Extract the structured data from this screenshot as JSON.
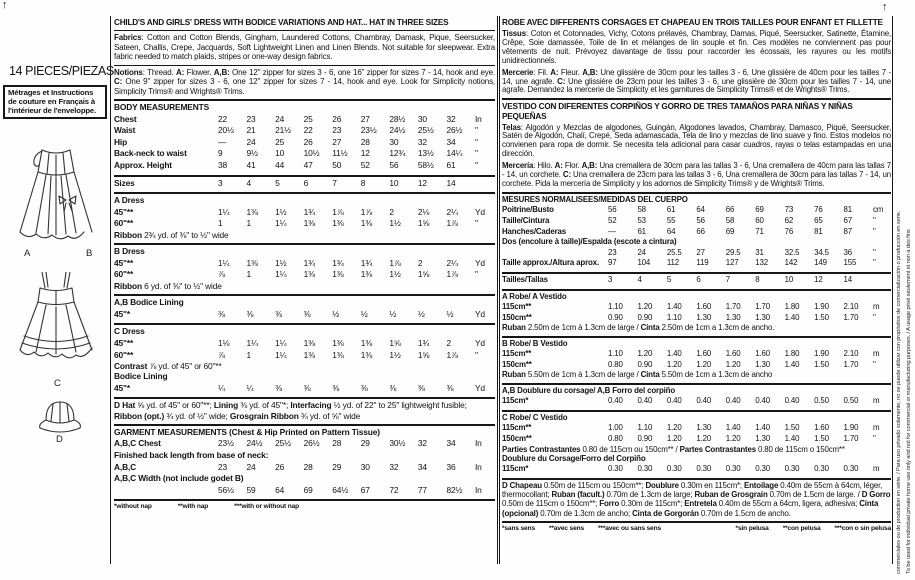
{
  "decor": {
    "arrow_glyph": "↑"
  },
  "sidebar": {
    "pieces_label": "14 PIECES/PIEZAS",
    "notice": "Métrages et Instructions de couture en Français à l'intérieur de l'enveloppe.",
    "view_labels": {
      "a": "A",
      "b": "B",
      "c": "C",
      "d": "D"
    }
  },
  "english": {
    "title": "CHILD'S AND GIRLS' DRESS WITH BODICE VARIATIONS AND HAT... HAT IN THREE SIZES",
    "fabrics": [
      {
        "b": "Fabrics"
      },
      {
        "t": ": Cotton and Cotton Blends, Gingham, Laundered Cottons, Chambray, Damask, Pique, Seersucker, Sateen, Challis, Crepe, Jacquards, Soft Lightweight Linen and Linen Blends. Not suitable for sleepwear. Extra fabric needed to match plaids, stripes or one-way design fabrics."
      }
    ],
    "notions": [
      {
        "b": "Notions"
      },
      {
        "t": ": Thread. "
      },
      {
        "b": "A:"
      },
      {
        "t": " Flower. "
      },
      {
        "b": "A,B:"
      },
      {
        "t": " One 12\" zipper for sizes 3 - 6, one 16\" zipper for sizes 7 - 14, hook and eye. "
      },
      {
        "b": "C:"
      },
      {
        "t": " One 9\" zipper for sizes 3 - 6, one 12\" zipper for sizes 7 - 14, hook and eye. Look for Simplicity notions, Simplicity Trims® and Wrights® Trims."
      }
    ],
    "rows": [
      {
        "label": "BODY MEASUREMENTS",
        "name": "body-measurements-header"
      },
      {
        "label": "Chest",
        "values": [
          "22",
          "23",
          "24",
          "25",
          "26",
          "27",
          "28½",
          "30",
          "32"
        ],
        "unit": "In",
        "name": "row-chest"
      },
      {
        "label": "Waist",
        "values": [
          "20½",
          "21",
          "21½",
          "22",
          "23",
          "23½",
          "24½",
          "25½",
          "26½"
        ],
        "unit": "\"",
        "name": "row-waist"
      },
      {
        "label": "Hip",
        "values": [
          "—",
          "24",
          "25",
          "26",
          "27",
          "28",
          "30",
          "32",
          "34"
        ],
        "unit": "\"",
        "name": "row-hip"
      },
      {
        "label": "Back-neck to waist",
        "values": [
          "9",
          "9½",
          "10",
          "10½",
          "11½",
          "12",
          "12¾",
          "13½",
          "14¼"
        ],
        "unit": "\"",
        "name": "row-back-neck"
      },
      {
        "label": "Approx. Height",
        "values": [
          "38",
          "41",
          "44",
          "47",
          "50",
          "52",
          "56",
          "58½",
          "61"
        ],
        "unit": "\"",
        "name": "row-height"
      },
      {
        "label": "Sizes",
        "values": [
          "3",
          "4",
          "5",
          "6",
          "7",
          "8",
          "10",
          "12",
          "14"
        ],
        "unit": "",
        "rule": "thick",
        "name": "row-sizes"
      },
      {
        "label": "A Dress",
        "rule": "thick",
        "name": "a-dress-header"
      },
      {
        "label": "45\"**",
        "values": [
          "1¼",
          "1⅜",
          "1½",
          "1¾",
          "1⅞",
          "1⅞",
          "2",
          "2⅛",
          "2¼"
        ],
        "unit": "Yd",
        "name": "a-dress-45"
      },
      {
        "label": "60\"**",
        "values": [
          "1",
          "1",
          "1¼",
          "1⅜",
          "1⅜",
          "1⅜",
          "1½",
          "1⅝",
          "1⅞"
        ],
        "unit": "\"",
        "name": "a-dress-60"
      },
      {
        "rich": [
          {
            "b": "Ribbon"
          },
          {
            "t": " 2¾ yd. of ⅜\" to ½\" wide"
          }
        ],
        "name": "a-ribbon-note"
      },
      {
        "label": "B Dress",
        "rule": "thick",
        "name": "b-dress-header"
      },
      {
        "label": "45\"**",
        "values": [
          "1¼",
          "1⅜",
          "1½",
          "1¾",
          "1¾",
          "1¾",
          "1⅞",
          "2",
          "2¼"
        ],
        "unit": "Yd",
        "name": "b-dress-45"
      },
      {
        "label": "60\"**",
        "values": [
          "⅞",
          "1",
          "1¼",
          "1⅜",
          "1⅜",
          "1⅜",
          "1½",
          "1⅝",
          "1⅞"
        ],
        "unit": "\"",
        "name": "b-dress-60"
      },
      {
        "rich": [
          {
            "b": "Ribbon"
          },
          {
            "t": " 6 yd. of ⅜\" to ½\" wide"
          }
        ],
        "name": "b-ribbon-note"
      },
      {
        "label": "A,B Bodice Lining",
        "rule": "thick",
        "name": "ab-bodice-lining-header"
      },
      {
        "label": "45\"*",
        "values": [
          "⅜",
          "⅜",
          "⅜",
          "⅜",
          "½",
          "½",
          "½",
          "½",
          "½"
        ],
        "unit": "Yd",
        "name": "ab-lining-45"
      },
      {
        "label": "C Dress",
        "rule": "thick",
        "name": "c-dress-header"
      },
      {
        "label": "45\"**",
        "values": [
          "1⅛",
          "1¼",
          "1¼",
          "1⅜",
          "1⅜",
          "1⅜",
          "1⅝",
          "1¾",
          "2"
        ],
        "unit": "Yd",
        "name": "c-dress-45"
      },
      {
        "label": "60\"**",
        "values": [
          "⅞",
          "1",
          "1¼",
          "1⅜",
          "1⅜",
          "1⅜",
          "1½",
          "1⅝",
          "1⅞"
        ],
        "unit": "\"",
        "name": "c-dress-60"
      },
      {
        "rich": [
          {
            "b": "Contrast"
          },
          {
            "t": " ⅞ yd. of 45\" or 60\"**"
          }
        ],
        "name": "c-contrast-note"
      },
      {
        "label": "Bodice Lining",
        "name": "c-bodice-lining-header"
      },
      {
        "label": "45\"*",
        "values": [
          "¼",
          "¼",
          "⅜",
          "⅜",
          "⅜",
          "⅜",
          "⅜",
          "⅜",
          "⅜"
        ],
        "unit": "Yd",
        "name": "c-lining-45"
      },
      {
        "rich": [
          {
            "b": "D Hat"
          },
          {
            "t": " ⅝ yd. of 45\" or 60\"**; "
          },
          {
            "b": "Lining"
          },
          {
            "t": " ⅜ yd. of 45\"*; "
          },
          {
            "b": "Interfacing"
          },
          {
            "t": " ½ yd. of 22\" to 25\" lightweight fusible; "
          },
          {
            "b": "Ribbon (opt.)"
          },
          {
            "t": " ¾ yd. of ½\" wide; "
          },
          {
            "b": "Grosgrain Ribbon"
          },
          {
            "t": " ¾ yd. of ⅝\" wide"
          }
        ],
        "rule": "thick",
        "name": "d-hat-note"
      },
      {
        "label": "GARMENT MEASUREMENTS (Chest & Hip Printed on Pattern Tissue)",
        "rule": "thick",
        "name": "garment-measurements-header"
      },
      {
        "label": "A,B,C Chest",
        "values": [
          "23½",
          "24½",
          "25½",
          "26½",
          "28",
          "29",
          "30½",
          "32",
          "34"
        ],
        "unit": "In",
        "name": "row-abc-chest"
      },
      {
        "label": "Finished back length from base of neck:",
        "name": "finished-back-length-label"
      },
      {
        "label": "A,B,C",
        "values": [
          "23",
          "24",
          "26",
          "28",
          "29",
          "30",
          "32",
          "34",
          "36"
        ],
        "unit": "In",
        "name": "row-abc-length"
      },
      {
        "label": "A,B,C Width (not include godet B)",
        "name": "abc-width-label"
      },
      {
        "label": "",
        "values": [
          "56½",
          "59",
          "64",
          "69",
          "64½",
          "67",
          "72",
          "77",
          "82½"
        ],
        "unit": "In",
        "name": "row-abc-width"
      }
    ],
    "footnotes": [
      "*without nap",
      "**with nap",
      "***with or without nap"
    ]
  },
  "intl": {
    "title_fr": "ROBE AVEC DIFFERENTS CORSAGES ET CHAPEAU EN TROIS TAILLES POUR ENFANT ET FILLETTE",
    "tissus": [
      {
        "b": "Tissus"
      },
      {
        "t": ": Coton et Cotonnades, Vichy, Cotons prélavés, Chambray, Damas, Piqué, Seersucker, Satinette, Étamine, Crêpe, Soie damassée, Toile de lin et mélanges de lin souple et fin. Ces modèles ne conviennent pas pour vêtements de nuit. Prévoyez davantage de tissu pour raccorder les écossais, les rayures ou les motifs unidirectionnels."
      }
    ],
    "mercerie": [
      {
        "b": "Mercerie"
      },
      {
        "t": ": Fil. "
      },
      {
        "b": "A:"
      },
      {
        "t": " Fleur. "
      },
      {
        "b": "A,B:"
      },
      {
        "t": " Une glissière de 30cm pour les tailles 3 - 6, Une glissière de 40cm pour les tailles 7 - 14, une agrafe. "
      },
      {
        "b": "C:"
      },
      {
        "t": " Une glissière de 23cm pour les tailles 3 - 6, une glissière de 30cm pour les tailles 7 - 14, une agrafe. Demandez la mercerie de Simplicity et les garnitures de Simplicity Trims® et de Wrights® Trims."
      }
    ],
    "title_es": "VESTIDO CON DIFERENTES CORPIÑOS Y GORRO DE TRES TAMAÑOS PARA NIÑAS Y NIÑAS PEQUEÑAS",
    "telas": [
      {
        "b": "Telas"
      },
      {
        "t": ": Algodón y Mezclas de algodones, Guingán, Algodones lavados, Chambray, Damasco, Piqué, Seersucker, Satén de Algodón, Chalí, Crepé, Seda adamascada, Tela de lino y mezclas de lino suave y fino. Estos modelos no convienen para ropa de dormir. Se necesita tela adicional para casar cuadros, rayas o telas estampadas en una dirección."
      }
    ],
    "merceria": [
      {
        "b": "Mercería"
      },
      {
        "t": ": Hilo. "
      },
      {
        "b": "A:"
      },
      {
        "t": " Flor. "
      },
      {
        "b": "A,B:"
      },
      {
        "t": " Una cremallera de 30cm para las tallas 3 - 6, Una cremallera de 40cm para las tallas 7 - 14, un corchete. "
      },
      {
        "b": "C:"
      },
      {
        "t": " Una cremallera de 23cm para las tallas 3 - 6, Una cremallera de 30cm para las tallas 7 - 14, un corchete. Pida la mercería de Simplicity y los adornos de Simplicity Trims® y de Wrights® Trims."
      }
    ],
    "rows": [
      {
        "label": "MESURES NORMALISEES/MEDIDAS DEL CUERPO",
        "name": "mesures-header"
      },
      {
        "label": "Poitrine/Busto",
        "values": [
          "56",
          "58",
          "61",
          "64",
          "66",
          "69",
          "73",
          "76",
          "81"
        ],
        "unit": "cm",
        "name": "row-poitrine"
      },
      {
        "label": "Taille/Cintura",
        "values": [
          "52",
          "53",
          "55",
          "56",
          "58",
          "60",
          "62",
          "65",
          "67"
        ],
        "unit": "\"",
        "name": "row-taille"
      },
      {
        "label": "Hanches/Caderas",
        "values": [
          "—",
          "61",
          "64",
          "66",
          "69",
          "71",
          "76",
          "81",
          "87"
        ],
        "unit": "\"",
        "name": "row-hanches"
      },
      {
        "label": "Dos (encolure à taille)/Espalda (escote a cintura)",
        "name": "dos-espalda-label"
      },
      {
        "label": "",
        "values": [
          "23",
          "24",
          "25.5",
          "27",
          "29.5",
          "31",
          "32.5",
          "34.5",
          "36"
        ],
        "unit": "\"",
        "name": "row-dos-values"
      },
      {
        "label": "Taille approx./Altura aprox.",
        "values": [
          "97",
          "104",
          "112",
          "119",
          "127",
          "132",
          "142",
          "149",
          "155"
        ],
        "unit": "\"",
        "name": "row-altura"
      },
      {
        "label": "Tailles/Tallas",
        "values": [
          "3",
          "4",
          "5",
          "6",
          "7",
          "8",
          "10",
          "12",
          "14"
        ],
        "unit": "",
        "rule": "thick",
        "name": "row-tailles"
      },
      {
        "label": "A Robe/ A Vestido",
        "rule": "thick",
        "name": "a-robe-header"
      },
      {
        "label": "115cm**",
        "values": [
          "1.10",
          "1.20",
          "1.40",
          "1.60",
          "1.70",
          "1.70",
          "1.80",
          "1.90",
          "2.10"
        ],
        "unit": "m",
        "name": "a-robe-115"
      },
      {
        "label": "150cm**",
        "values": [
          "0.90",
          "0.90",
          "1.10",
          "1.30",
          "1.30",
          "1.30",
          "1.40",
          "1.50",
          "1.70"
        ],
        "unit": "\"",
        "name": "a-robe-150"
      },
      {
        "rich": [
          {
            "b": "Ruban"
          },
          {
            "t": " 2.50m de 1cm à 1.3cm de large / "
          },
          {
            "b": "Cinta"
          },
          {
            "t": " 2.50m de 1cm a 1.3cm de ancho."
          }
        ],
        "name": "a-ruban-note"
      },
      {
        "label": "B Robe/ B Vestido",
        "rule": "thick",
        "name": "b-robe-header"
      },
      {
        "label": "115cm**",
        "values": [
          "1.10",
          "1.20",
          "1.40",
          "1.60",
          "1.60",
          "1.60",
          "1.80",
          "1.90",
          "2.10"
        ],
        "unit": "m",
        "name": "b-robe-115"
      },
      {
        "label": "150cm**",
        "values": [
          "0.80",
          "0.90",
          "1.20",
          "1.20",
          "1.20",
          "1.30",
          "1.40",
          "1.50",
          "1.70"
        ],
        "unit": "\"",
        "name": "b-robe-150"
      },
      {
        "rich": [
          {
            "b": "Ruban"
          },
          {
            "t": " 5.50m de 1cm à 1.3cm de large / "
          },
          {
            "b": "Cinta"
          },
          {
            "t": " 5.50m de 1cm a 1.3cm de ancho"
          }
        ],
        "name": "b-ruban-note"
      },
      {
        "label": "A,B Doublure du corsage/ A,B Forro del corpiño",
        "rule": "thick",
        "name": "ab-doublure-header"
      },
      {
        "label": "115cm*",
        "values": [
          "0.40",
          "0.40",
          "0.40",
          "0.40",
          "0.40",
          "0.40",
          "0.40",
          "0.50",
          "0.50"
        ],
        "unit": "m",
        "name": "ab-doublure-115"
      },
      {
        "label": "C Robe/ C Vestido",
        "rule": "thick",
        "name": "c-robe-header"
      },
      {
        "label": "115cm**",
        "values": [
          "1.00",
          "1.10",
          "1.20",
          "1.30",
          "1.40",
          "1.40",
          "1.50",
          "1.60",
          "1.90"
        ],
        "unit": "m",
        "name": "c-robe-115"
      },
      {
        "label": "150cm**",
        "values": [
          "0.80",
          "0.90",
          "1.20",
          "1.20",
          "1.20",
          "1.30",
          "1.40",
          "1.50",
          "1.70"
        ],
        "unit": "\"",
        "name": "c-robe-150"
      },
      {
        "rich": [
          {
            "b": "Parties Contrastantes"
          },
          {
            "t": " 0.80 de 115cm ou 150cm** / "
          },
          {
            "b": "Partes Contrastantes"
          },
          {
            "t": " 0.80 de 115cm o 150cm**"
          }
        ],
        "name": "c-contrast-note"
      },
      {
        "label": "Doublure du Corsage/Forro del Corpiño",
        "name": "c-doublure-header"
      },
      {
        "label": "115cm*",
        "values": [
          "0.30",
          "0.30",
          "0.30",
          "0.30",
          "0.30",
          "0.30",
          "0.30",
          "0.30",
          "0.30"
        ],
        "unit": "m",
        "name": "c-doublure-115"
      },
      {
        "rich": [
          {
            "b": "D Chapeau"
          },
          {
            "t": " 0.50m de 115cm ou 150cm**; "
          },
          {
            "b": "Doublure"
          },
          {
            "t": " 0.30m en 115cm*; "
          },
          {
            "b": "Entoilage"
          },
          {
            "t": " 0.40m de 55cm à 64cm, léger, thermocollant; "
          },
          {
            "b": "Ruban (facult.)"
          },
          {
            "t": " 0.70m de 1.3cm de large; "
          },
          {
            "b": "Ruban de Grosgrain"
          },
          {
            "t": " 0.70m de 1.5cm de large. / "
          },
          {
            "b": "D Gorro"
          },
          {
            "t": " 0.50m de 115cm o 150cm**; "
          },
          {
            "b": "Forro"
          },
          {
            "t": " 0.30m de 115cm*; "
          },
          {
            "b": "Entretela"
          },
          {
            "t": " 0.40m de 55cm a 64cm, ligera, adhesiva; "
          },
          {
            "b": "Cinta (opcional)"
          },
          {
            "t": " 0.70m de 1.3cm de ancho; "
          },
          {
            "b": "Cinta de Gorgorán"
          },
          {
            "t": " 0.70m de 1.5cm de ancho."
          }
        ],
        "rule": "thick",
        "name": "d-chapeau-note"
      }
    ],
    "footnotes_fr": [
      "*sans sens",
      "**avec sens",
      "***avec ou sans sens"
    ],
    "footnotes_es": [
      "*sin pelusa",
      "**con pelusa",
      "***con o sin pelusa"
    ]
  },
  "side_strip": {
    "line1": "To be used for individual private home use only and not for commercial or manufacturing purposes. / A usage privé seulement et non à des fins",
    "line2": "commerciales ou de production en série. / Para uso privado solamente, no se puede utilizar con propósitos de comercialización o producción en serie."
  }
}
